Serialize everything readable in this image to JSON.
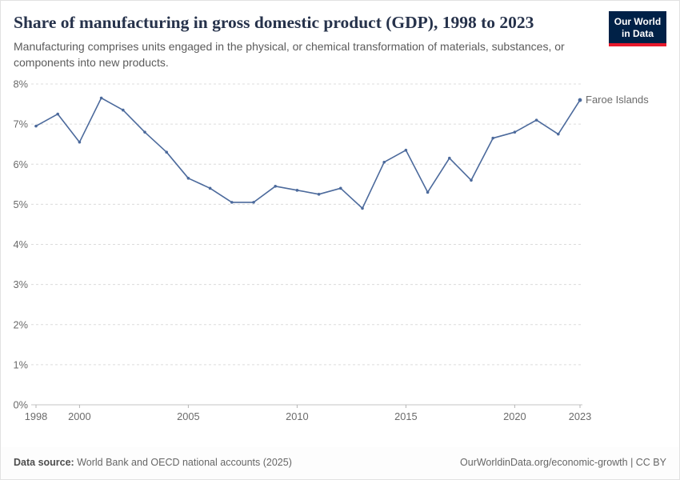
{
  "header": {
    "title": "Share of manufacturing in gross domestic product (GDP), 1998 to 2023",
    "subtitle": "Manufacturing comprises units engaged in the physical, or chemical transformation of materials, substances, or components into new products.",
    "logo": {
      "line1": "Our World",
      "line2": "in Data"
    }
  },
  "colors": {
    "logo_bg": "#002147",
    "logo_accent": "#e8192c",
    "line": "#4c6a9c",
    "gridline": "#dcdcdc",
    "zero_line": "#c4c4c4",
    "tick_text": "#6b6b6b"
  },
  "chart_data": {
    "type": "line",
    "title": "Share of manufacturing in gross domestic product (GDP), 1998 to 2023",
    "xlabel": "",
    "ylabel": "",
    "ylim": [
      0,
      8
    ],
    "yticks": [
      0,
      1,
      2,
      3,
      4,
      5,
      6,
      7,
      8
    ],
    "ytick_suffix": "%",
    "xticks": [
      1998,
      2000,
      2005,
      2010,
      2015,
      2020,
      2023
    ],
    "grid": "dashed-horizontal",
    "legend_position": "end-of-line",
    "x": [
      1998,
      1999,
      2000,
      2001,
      2002,
      2003,
      2004,
      2005,
      2006,
      2007,
      2008,
      2009,
      2010,
      2011,
      2012,
      2013,
      2014,
      2015,
      2016,
      2017,
      2018,
      2019,
      2020,
      2021,
      2022,
      2023
    ],
    "series": [
      {
        "name": "Faroe Islands",
        "color": "#4c6a9c",
        "values": [
          6.95,
          7.25,
          6.55,
          7.65,
          7.35,
          6.8,
          6.3,
          5.65,
          5.4,
          5.05,
          5.05,
          5.45,
          5.35,
          5.25,
          5.4,
          4.9,
          6.05,
          6.35,
          5.3,
          6.15,
          5.6,
          6.65,
          6.8,
          7.1,
          6.75,
          7.6
        ]
      }
    ]
  },
  "footer": {
    "source_label": "Data source:",
    "source_text": " World Bank and OECD national accounts (2025)",
    "link_text": "OurWorldinData.org/economic-growth | CC BY"
  }
}
